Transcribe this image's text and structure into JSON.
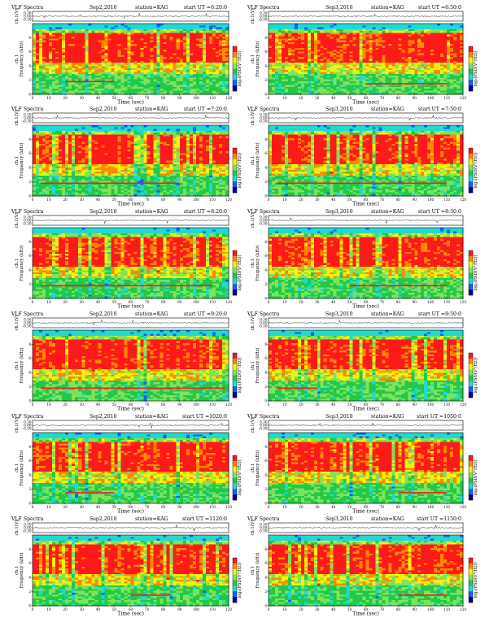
{
  "chart_data": [
    {
      "type": "heatmap",
      "title": "VLF Spectra",
      "date": "Sep2,2010",
      "station": "station=KAG",
      "start_ut": "start UT =6:20:0",
      "top_ylabel": "ch.1(V)",
      "ylabel_line1": "ch.1",
      "ylabel_line2": "Frequency (kHz)",
      "xlabel": "Time (sec)",
      "cbar_label": "log₂(PSD(V²/Hz))",
      "x_ticks": [
        0,
        10,
        20,
        30,
        40,
        50,
        60,
        70,
        80,
        90,
        100,
        110,
        120
      ],
      "y_ticks": [
        0,
        2,
        4,
        6,
        8
      ],
      "top_y_ticks": [
        "0.30",
        "0.00",
        "-0.30"
      ],
      "xlim": [
        0,
        120
      ],
      "ylim": [
        0,
        10
      ],
      "pdlayer": 1.8,
      "pdstart": 20,
      "pdend": 50
    },
    {
      "type": "heatmap",
      "title": "VLF Spectra",
      "date": "Sep3,2010",
      "station": "station=KAG",
      "start_ut": "start UT =6:50:0",
      "top_ylabel": "ch.1(V)",
      "ylabel_line1": "ch.1",
      "ylabel_line2": "Frequency (kHz)",
      "xlabel": "Time (sec)",
      "cbar_label": "log₂(PSD(V²/Hz))",
      "x_ticks": [
        0,
        10,
        20,
        30,
        40,
        50,
        60,
        70,
        80,
        90,
        100,
        110,
        120
      ],
      "y_ticks": [
        0,
        2,
        4,
        6,
        8
      ],
      "top_y_ticks": [
        "0.30",
        "0.00",
        "-0.30"
      ],
      "xlim": [
        0,
        120
      ],
      "ylim": [
        0,
        10
      ],
      "pdlayer": 1.5,
      "pdstart": 60,
      "pdend": 110
    },
    {
      "type": "heatmap",
      "title": "VLF Spectra",
      "date": "Sep2,2010",
      "station": "station=KAG",
      "start_ut": "start UT =7:20:0",
      "top_ylabel": "ch.1(V)",
      "ylabel_line1": "ch.1",
      "ylabel_line2": "Frequency (kHz)",
      "xlabel": "Time (sec)",
      "cbar_label": "log₂(PSD(V²/Hz))",
      "x_ticks": [
        0,
        10,
        20,
        30,
        40,
        50,
        60,
        70,
        80,
        90,
        100,
        110,
        120
      ],
      "y_ticks": [
        0,
        2,
        4,
        6,
        8
      ],
      "top_y_ticks": [
        "0.30",
        "0.00",
        "-0.30"
      ],
      "xlim": [
        0,
        120
      ],
      "ylim": [
        0,
        10
      ],
      "pdlayer": 1.8,
      "pdstart": 5,
      "pdend": 90
    },
    {
      "type": "heatmap",
      "title": "VLF Spectra",
      "date": "Sep3,2010",
      "station": "station=KAG",
      "start_ut": "start UT =7:50:0",
      "top_ylabel": "ch.1(V)",
      "ylabel_line1": "ch.1",
      "ylabel_line2": "Frequency (kHz)",
      "xlabel": "Time (sec)",
      "cbar_label": "log₂(PSD(V²/Hz))",
      "x_ticks": [
        0,
        10,
        20,
        30,
        40,
        50,
        60,
        70,
        80,
        90,
        100,
        110,
        120
      ],
      "y_ticks": [
        0,
        2,
        4,
        6,
        8
      ],
      "top_y_ticks": [
        "0.30",
        "0.00",
        "-0.30"
      ],
      "xlim": [
        0,
        120
      ],
      "ylim": [
        0,
        10
      ],
      "pdlayer": 1.8,
      "pdstart": 5,
      "pdend": 110
    },
    {
      "type": "heatmap",
      "title": "VLF Spectra",
      "date": "Sep2,2010",
      "station": "station=KAG",
      "start_ut": "start UT =8:20:0",
      "top_ylabel": "ch.1(V)",
      "ylabel_line1": "ch.1",
      "ylabel_line2": "Frequency (kHz)",
      "xlabel": "Time (sec)",
      "cbar_label": "log₂(PSD(V²/Hz))",
      "x_ticks": [
        0,
        10,
        20,
        30,
        40,
        50,
        60,
        70,
        80,
        90,
        100,
        110,
        120
      ],
      "y_ticks": [
        0,
        2,
        4,
        6,
        8
      ],
      "top_y_ticks": [
        "0.30",
        "0.00",
        "-0.30"
      ],
      "xlim": [
        0,
        120
      ],
      "ylim": [
        0,
        10
      ],
      "pdlayer": 1.8,
      "pdstart": 5,
      "pdend": 110
    },
    {
      "type": "heatmap",
      "title": "VLF Spectra",
      "date": "Sep3,2010",
      "station": "station=KAG",
      "start_ut": "start UT =8:50:0",
      "top_ylabel": "ch.1(V)",
      "ylabel_line1": "ch.1",
      "ylabel_line2": "Frequency (kHz)",
      "xlabel": "Time (sec)",
      "cbar_label": "log₂(PSD(V²/Hz))",
      "x_ticks": [
        0,
        10,
        20,
        30,
        40,
        50,
        60,
        70,
        80,
        90,
        100,
        110,
        120
      ],
      "y_ticks": [
        0,
        2,
        4,
        6,
        8
      ],
      "top_y_ticks": [
        "0.30",
        "0.00",
        "-0.30"
      ],
      "xlim": [
        0,
        120
      ],
      "ylim": [
        0,
        10
      ],
      "pdlayer": 1.8,
      "pdstart": 50,
      "pdend": 110
    },
    {
      "type": "heatmap",
      "title": "VLF Spectra",
      "date": "Sep2,2010",
      "station": "station=KAG",
      "start_ut": "start UT =9:20:0",
      "top_ylabel": "ch.1(V)",
      "ylabel_line1": "ch.1",
      "ylabel_line2": "Frequency (kHz)",
      "xlabel": "Time (sec)",
      "cbar_label": "log₂(PSD(V²/Hz))",
      "x_ticks": [
        0,
        10,
        20,
        30,
        40,
        50,
        60,
        70,
        80,
        90,
        100,
        110,
        120
      ],
      "y_ticks": [
        0,
        2,
        4,
        6,
        8
      ],
      "top_y_ticks": [
        "0.30",
        "0.00",
        "-0.30"
      ],
      "xlim": [
        0,
        120
      ],
      "ylim": [
        0,
        10
      ],
      "pdlayer": 1.8,
      "pdstart": 5,
      "pdend": 118
    },
    {
      "type": "heatmap",
      "title": "VLF Spectra",
      "date": "Sep3,2010",
      "station": "station=KAG",
      "start_ut": "start UT =9:50:0",
      "top_ylabel": "ch.1(V)",
      "ylabel_line1": "ch.1",
      "ylabel_line2": "Frequency (kHz)",
      "xlabel": "Time (sec)",
      "cbar_label": "log₂(PSD(V²/Hz))",
      "x_ticks": [
        0,
        10,
        20,
        30,
        40,
        50,
        60,
        70,
        80,
        90,
        100,
        110,
        120
      ],
      "y_ticks": [
        0,
        2,
        4,
        6,
        8
      ],
      "top_y_ticks": [
        "0.30",
        "0.00",
        "-0.30"
      ],
      "xlim": [
        0,
        120
      ],
      "ylim": [
        0,
        10
      ],
      "pdlayer": 1.8,
      "pdstart": 5,
      "pdend": 30
    },
    {
      "type": "heatmap",
      "title": "VLF Spectra",
      "date": "Sep2,2010",
      "station": "station=KAG",
      "start_ut": "start UT =1020:0",
      "top_ylabel": "ch.1(V)",
      "ylabel_line1": "ch.1",
      "ylabel_line2": "Frequency (kHz)",
      "xlabel": "Time (sec)",
      "cbar_label": "log₂(PSD(V²/Hz))",
      "x_ticks": [
        0,
        10,
        20,
        30,
        40,
        50,
        60,
        70,
        80,
        90,
        100,
        110,
        120
      ],
      "y_ticks": [
        0,
        2,
        4,
        6,
        8
      ],
      "top_y_ticks": [
        "0.30",
        "0.00",
        "-0.30"
      ],
      "xlim": [
        0,
        120
      ],
      "ylim": [
        0,
        10
      ],
      "pdlayer": 1.5,
      "pdstart": 20,
      "pdend": 50
    },
    {
      "type": "heatmap",
      "title": "VLF Spectra",
      "date": "Sep3,2010",
      "station": "station=KAG",
      "start_ut": "start UT =1050:0",
      "top_ylabel": "ch.1(V)",
      "ylabel_line1": "ch.1",
      "ylabel_line2": "Frequency (kHz)",
      "xlabel": "Time (sec)",
      "cbar_label": "log₂(PSD(V²/Hz))",
      "x_ticks": [
        0,
        10,
        20,
        30,
        40,
        50,
        60,
        70,
        80,
        90,
        100,
        110,
        120
      ],
      "y_ticks": [
        0,
        2,
        4,
        6,
        8
      ],
      "top_y_ticks": [
        "0.30",
        "0.00",
        "-0.30"
      ],
      "xlim": [
        0,
        120
      ],
      "ylim": [
        0,
        10
      ],
      "pdlayer": 1.5,
      "pdstart": 80,
      "pdend": 110
    },
    {
      "type": "heatmap",
      "title": "VLF Spectra",
      "date": "Sep2,2010",
      "station": "station=KAG",
      "start_ut": "start UT =1120:0",
      "top_ylabel": "ch.1(V)",
      "ylabel_line1": "ch.1",
      "ylabel_line2": "Frequency (kHz)",
      "xlabel": "Time (sec)",
      "cbar_label": "log₂(PSD(V²/Hz))",
      "x_ticks": [
        0,
        10,
        20,
        30,
        40,
        50,
        60,
        70,
        80,
        90,
        100,
        110,
        120
      ],
      "y_ticks": [
        0,
        2,
        4,
        6,
        8
      ],
      "top_y_ticks": [
        "0.30",
        "0.00",
        "-0.30"
      ],
      "xlim": [
        0,
        120
      ],
      "ylim": [
        0,
        10
      ],
      "pdlayer": 1.5,
      "pdstart": 60,
      "pdend": 85
    },
    {
      "type": "heatmap",
      "title": "VLF Spectra",
      "date": "Sep3,2010",
      "station": "station=KAG",
      "start_ut": "start UT =1150:0",
      "top_ylabel": "ch.1(V)",
      "ylabel_line1": "ch.1",
      "ylabel_line2": "Frequency (kHz)",
      "xlabel": "Time (sec)",
      "cbar_label": "log₂(PSD(V²/Hz))",
      "x_ticks": [
        0,
        10,
        20,
        30,
        40,
        50,
        60,
        70,
        80,
        90,
        100,
        110,
        120
      ],
      "y_ticks": [
        0,
        2,
        4,
        6,
        8
      ],
      "top_y_ticks": [
        "0.30",
        "0.00",
        "-0.30"
      ],
      "xlim": [
        0,
        120
      ],
      "ylim": [
        0,
        10
      ],
      "pdlayer": 1.5,
      "pdstart": 80,
      "pdend": 110
    }
  ],
  "colors": {
    "red": "#ff1a1a",
    "orange": "#ff8800",
    "yellow": "#f5f10a",
    "lightgreen": "#7fe35a",
    "green": "#22c84a",
    "cyan": "#22d9d0",
    "blue": "#1060ff",
    "darkblue": "#000098",
    "bg": "#ffffff"
  }
}
